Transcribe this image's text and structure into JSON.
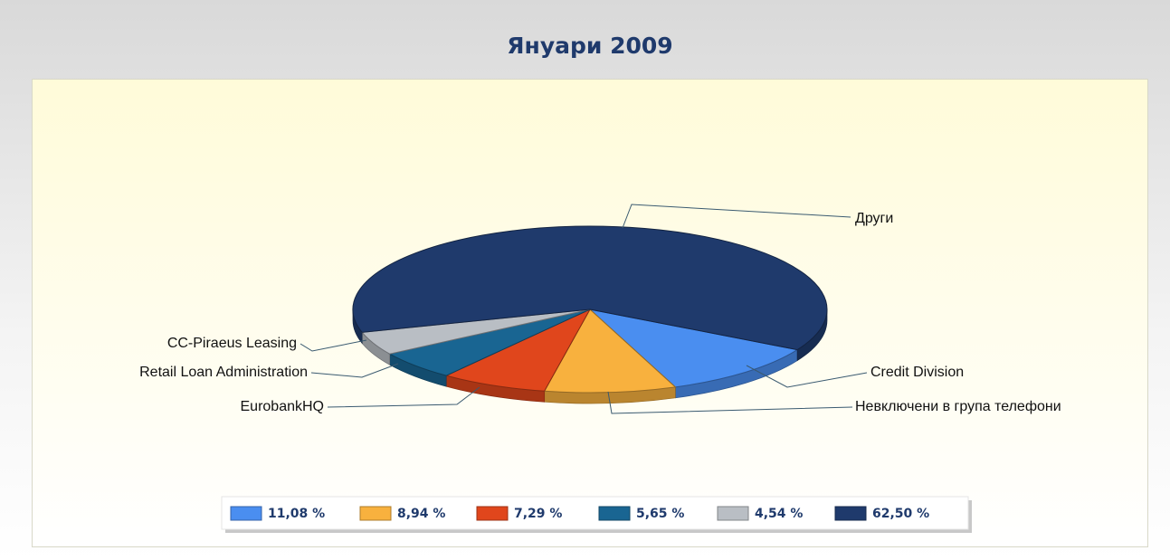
{
  "chart_data": {
    "type": "pie",
    "title": "Януари 2009",
    "categories": [
      "Credit Division",
      "Невключени в група телефони",
      "EurobankHQ",
      "Retail Loan Administration",
      "CC-Piraeus Leasing",
      "Други"
    ],
    "values": [
      11.08,
      8.94,
      7.29,
      5.65,
      4.54,
      62.5
    ],
    "value_labels": [
      "11,08 %",
      "8,94 %",
      "7,29 %",
      "5,65 %",
      "4,54 %",
      "62,50 %"
    ],
    "colors": [
      "#4a8ef0",
      "#f8b13e",
      "#e0461c",
      "#196592",
      "#b9bec4",
      "#1f3a6c"
    ]
  }
}
